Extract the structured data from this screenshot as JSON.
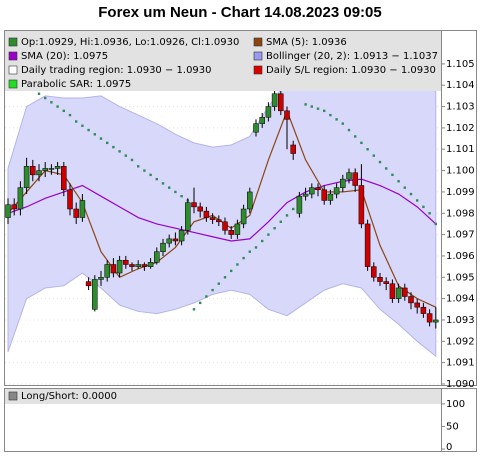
{
  "title": "Forex um Neun - Chart 14.08.2023 09:05",
  "chart_data": [
    {
      "type": "candlestick",
      "up_color": "#2e8b2e",
      "down_color": "#cc0000",
      "grid": true,
      "ylim": [
        1.09,
        1.1064
      ],
      "yticks": [
        {
          "value": 1.09,
          "label": "1.090"
        },
        1.091,
        1.092,
        1.093,
        1.094,
        1.095,
        1.096,
        1.097,
        1.098,
        1.099,
        {
          "value": 1.1,
          "label": "1.100"
        },
        1.101,
        1.102,
        1.103,
        1.104,
        1.105
      ],
      "open": [
        1.0978,
        1.0984,
        1.0982,
        1.0992,
        1.1002,
        1.0998,
        1.1,
        1.1001,
        1.1001,
        1.1002,
        1.0991,
        1.0982,
        1.0978,
        1.0948,
        1.0935,
        1.0949,
        1.095,
        1.0956,
        1.0952,
        1.0958,
        1.0956,
        1.0955,
        1.0956,
        1.0955,
        1.0957,
        1.0962,
        1.0966,
        1.0968,
        1.0967,
        1.0972,
        1.0985,
        1.0983,
        1.0981,
        1.0978,
        1.0977,
        1.0976,
        1.0972,
        1.097,
        1.0975,
        1.0982,
        1.1018,
        1.1022,
        1.1025,
        1.103,
        1.1036,
        1.1028,
        1.1012,
        1.098,
        1.0988,
        1.0989,
        1.0992,
        1.0991,
        1.0986,
        1.0989,
        1.0992,
        1.0996,
        1.0999,
        1.0993,
        1.0975,
        1.0955,
        1.095,
        1.0948,
        1.0947,
        1.094,
        1.0945,
        1.0941,
        1.0938,
        1.0936,
        1.0933,
        1.0929
      ],
      "high": [
        1.0987,
        1.0987,
        1.0995,
        1.1006,
        1.1005,
        1.1003,
        1.1004,
        1.1003,
        1.1004,
        1.1004,
        1.0994,
        1.0985,
        1.0989,
        1.095,
        1.0951,
        1.0953,
        1.0958,
        1.0959,
        1.096,
        1.096,
        1.0957,
        1.0958,
        1.0957,
        1.0959,
        1.0964,
        1.0968,
        1.097,
        1.0971,
        1.0974,
        1.0987,
        1.0992,
        1.0985,
        1.0983,
        1.098,
        1.0979,
        1.0978,
        1.0974,
        1.0977,
        1.0984,
        1.0992,
        1.1024,
        1.1027,
        1.1032,
        1.1038,
        1.1038,
        1.103,
        1.1014,
        1.099,
        1.0992,
        1.0994,
        1.0994,
        1.0993,
        1.0991,
        1.0994,
        1.0998,
        1.1001,
        1.1001,
        1.1003,
        1.0977,
        1.0957,
        1.0952,
        1.095,
        1.0949,
        1.0947,
        1.0947,
        1.0943,
        1.094,
        1.0938,
        1.0935,
        1.0936
      ],
      "low": [
        1.0975,
        1.0979,
        1.0979,
        1.0989,
        1.0995,
        1.0995,
        1.0997,
        1.0998,
        1.0998,
        1.0988,
        1.0979,
        1.0975,
        1.0976,
        1.0944,
        1.0934,
        1.0946,
        1.0948,
        1.095,
        1.095,
        1.0954,
        1.0953,
        1.0954,
        1.0953,
        1.0954,
        1.0956,
        1.096,
        1.0964,
        1.0965,
        1.0965,
        1.097,
        1.098,
        1.0978,
        1.0976,
        1.0975,
        1.0974,
        1.097,
        1.0968,
        1.0968,
        1.0973,
        1.098,
        1.1016,
        1.102,
        1.1023,
        1.1028,
        1.1026,
        1.101,
        1.1005,
        1.0978,
        1.0986,
        1.0987,
        1.0988,
        1.0984,
        1.0984,
        1.0987,
        1.099,
        1.0994,
        1.099,
        1.0973,
        1.0953,
        1.0948,
        1.0946,
        1.0944,
        1.0938,
        1.0938,
        1.0939,
        1.0935,
        1.0933,
        1.0931,
        1.0927,
        1.0926
      ],
      "close": [
        1.0984,
        1.0982,
        1.0992,
        1.1002,
        1.0998,
        1.1,
        1.1001,
        1.1001,
        1.1002,
        1.0991,
        1.0982,
        1.0978,
        1.0986,
        1.0946,
        1.0949,
        1.095,
        1.0956,
        1.0952,
        1.0958,
        1.0956,
        1.0955,
        1.0956,
        1.0955,
        1.0957,
        1.0962,
        1.0966,
        1.0968,
        1.0967,
        1.0972,
        1.0985,
        1.0983,
        1.0981,
        1.0978,
        1.0977,
        1.0976,
        1.0972,
        1.097,
        1.0975,
        1.0982,
        1.099,
        1.1022,
        1.1025,
        1.103,
        1.1036,
        1.1028,
        1.1024,
        1.1008,
        1.0988,
        1.0989,
        1.0992,
        1.0991,
        1.0986,
        1.0989,
        1.0992,
        1.0996,
        1.0999,
        1.0993,
        1.0975,
        1.0955,
        1.095,
        1.0948,
        1.0947,
        1.094,
        1.0945,
        1.0941,
        1.0938,
        1.0936,
        1.0933,
        1.0929,
        1.093
      ],
      "band": {
        "color": "#d8d8fa",
        "stroke": "#b4b4ea",
        "x": [
          0,
          3,
          6,
          9,
          12,
          15,
          18,
          21,
          24,
          27,
          30,
          33,
          36,
          39,
          42,
          45,
          48,
          51,
          54,
          57,
          60,
          63,
          66,
          69
        ],
        "upper": [
          1.1001,
          1.103,
          1.1035,
          1.1034,
          1.1034,
          1.1035,
          1.103,
          1.1026,
          1.1022,
          1.1017,
          1.1013,
          1.1011,
          1.1012,
          1.1016,
          1.103,
          1.1042,
          1.1043,
          1.1042,
          1.1045,
          1.1048,
          1.1051,
          1.105,
          1.1042,
          1.1037
        ],
        "lower": [
          1.0915,
          1.094,
          1.0945,
          1.0946,
          1.0952,
          1.0945,
          1.0937,
          1.0934,
          1.0933,
          1.0935,
          1.0938,
          1.0942,
          1.0944,
          1.0942,
          1.0935,
          1.0932,
          1.0938,
          1.0944,
          1.0947,
          1.0945,
          1.0935,
          1.0928,
          1.092,
          1.0913
        ]
      },
      "lines": [
        {
          "color": "#9900cc",
          "x": [
            0,
            3,
            6,
            9,
            12,
            15,
            18,
            21,
            24,
            27,
            30,
            33,
            36,
            39,
            42,
            45,
            48,
            51,
            54,
            57,
            60,
            63,
            66,
            69
          ],
          "values": [
            1.098,
            1.0983,
            1.0987,
            1.099,
            1.0993,
            1.0988,
            1.0983,
            1.0978,
            1.0975,
            1.0973,
            1.0971,
            1.0969,
            1.0967,
            1.0968,
            1.0976,
            1.0985,
            1.099,
            1.0993,
            1.0995,
            1.0996,
            1.0993,
            1.0989,
            1.0983,
            1.0975
          ]
        },
        {
          "color": "#8b4513",
          "x": [
            0,
            3,
            6,
            9,
            12,
            15,
            18,
            21,
            24,
            27,
            30,
            33,
            36,
            39,
            42,
            45,
            48,
            51,
            54,
            57,
            60,
            63,
            66,
            69
          ],
          "values": [
            1.098,
            1.099,
            1.1,
            1.0998,
            1.0985,
            1.0962,
            1.095,
            1.0954,
            1.0957,
            1.0964,
            1.0976,
            1.0979,
            1.0973,
            1.0979,
            1.1005,
            1.1028,
            1.1005,
            1.099,
            1.099,
            1.0991,
            1.0965,
            1.0946,
            1.094,
            1.0936
          ]
        }
      ],
      "sar": {
        "color": "#2e8b57",
        "values": [
          null,
          null,
          null,
          1.104,
          1.1038,
          1.1036,
          1.1034,
          1.1032,
          1.103,
          1.1028,
          1.1026,
          1.1023,
          1.1021,
          1.1019,
          1.1017,
          1.1015,
          1.1013,
          1.1011,
          1.1009,
          1.1007,
          1.1005,
          1.1002,
          1.1,
          1.0998,
          1.0996,
          1.0994,
          1.0992,
          1.099,
          1.0988,
          1.0986,
          1.0935,
          1.0938,
          1.0941,
          1.0944,
          1.0947,
          1.095,
          1.0953,
          1.0956,
          1.0959,
          1.0962,
          1.0964,
          1.0967,
          1.097,
          1.0973,
          1.0976,
          1.0979,
          1.0982,
          1.0985,
          1.1031,
          1.103,
          1.1029,
          1.1028,
          1.1026,
          1.1024,
          1.1022,
          1.1019,
          1.1016,
          1.1013,
          1.101,
          1.1007,
          1.1004,
          1.1001,
          1.0998,
          1.0995,
          1.0992,
          1.0989,
          1.0986,
          1.0983,
          1.098,
          1.0975
        ]
      },
      "legend": [
        {
          "label": "Op:1.0929, Hi:1.0936, Lo:1.0926, Cl:1.0930",
          "color": "#2e8b2e"
        },
        {
          "label": "SMA (5): 1.0936",
          "color": "#8b4513"
        },
        {
          "label": "SMA (20): 1.0975",
          "color": "#9900cc"
        },
        {
          "label": "Bollinger (20, 2): 1.0913 − 1.1037",
          "color": "#9999ee"
        },
        {
          "label": "Daily trading region: 1.0930 − 1.0930",
          "color": "#ffffff"
        },
        {
          "label": "Daily S/L region: 1.0930 − 1.0930",
          "color": "#dd0000"
        },
        {
          "label": "Parabolic SAR: 1.0975",
          "color": "#22dd22"
        }
      ]
    },
    {
      "type": "line",
      "ylim": [
        0,
        133
      ],
      "yticks": [
        0,
        50,
        100
      ],
      "legend": [
        {
          "label": "Long/Short: 0.0000",
          "color": "#888888"
        }
      ]
    }
  ]
}
